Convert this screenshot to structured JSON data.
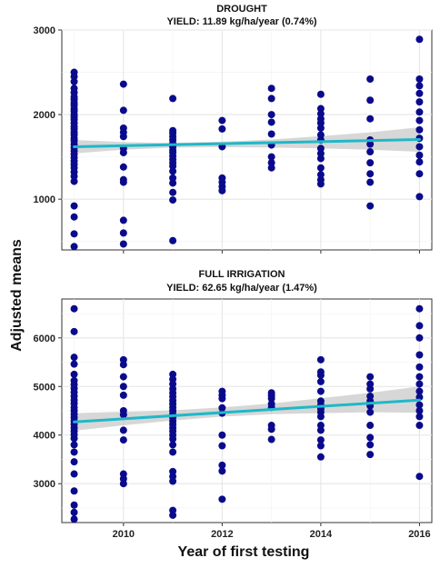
{
  "figure": {
    "ylabel": "Adjusted means",
    "xlabel": "Year of first testing"
  },
  "colors": {
    "point": "#0a0a8c",
    "trend": "#1fb8c8",
    "ribbon": "#bdbdbd"
  },
  "chart_data": [
    {
      "type": "scatter",
      "title": "DROUGHT",
      "subtitle": "YIELD: 11.89 kg/ha/year (0.74%)",
      "xlim": [
        2008.75,
        2016.25
      ],
      "ylim": [
        400,
        3000
      ],
      "x_ticks": [
        2010,
        2012,
        2014,
        2016
      ],
      "y_ticks": [
        1000,
        2000,
        3000
      ],
      "grid": true,
      "trend": {
        "x": [
          2009,
          2016
        ],
        "y": [
          1620,
          1705
        ]
      },
      "ribbon": {
        "x": [
          2009,
          2010,
          2011,
          2012,
          2013,
          2014,
          2015,
          2016
        ],
        "lower": [
          1540,
          1585,
          1610,
          1615,
          1610,
          1600,
          1585,
          1560
        ],
        "upper": [
          1700,
          1675,
          1665,
          1680,
          1705,
          1745,
          1790,
          1850
        ]
      },
      "points": [
        [
          2009,
          2500
        ],
        [
          2009,
          2450
        ],
        [
          2009,
          2390
        ],
        [
          2009,
          2310
        ],
        [
          2009,
          2260
        ],
        [
          2009,
          2210
        ],
        [
          2009,
          2180
        ],
        [
          2009,
          2140
        ],
        [
          2009,
          2110
        ],
        [
          2009,
          2070
        ],
        [
          2009,
          2040
        ],
        [
          2009,
          2000
        ],
        [
          2009,
          1970
        ],
        [
          2009,
          1940
        ],
        [
          2009,
          1900
        ],
        [
          2009,
          1860
        ],
        [
          2009,
          1830
        ],
        [
          2009,
          1790
        ],
        [
          2009,
          1760
        ],
        [
          2009,
          1720
        ],
        [
          2009,
          1690
        ],
        [
          2009,
          1650
        ],
        [
          2009,
          1610
        ],
        [
          2009,
          1570
        ],
        [
          2009,
          1530
        ],
        [
          2009,
          1490
        ],
        [
          2009,
          1450
        ],
        [
          2009,
          1410
        ],
        [
          2009,
          1370
        ],
        [
          2009,
          1320
        ],
        [
          2009,
          1270
        ],
        [
          2009,
          1210
        ],
        [
          2009,
          920
        ],
        [
          2009,
          790
        ],
        [
          2009,
          590
        ],
        [
          2009,
          440
        ],
        [
          2010,
          2360
        ],
        [
          2010,
          2050
        ],
        [
          2010,
          1840
        ],
        [
          2010,
          1790
        ],
        [
          2010,
          1740
        ],
        [
          2010,
          1600
        ],
        [
          2010,
          1550
        ],
        [
          2010,
          1380
        ],
        [
          2010,
          1230
        ],
        [
          2010,
          1200
        ],
        [
          2010,
          750
        ],
        [
          2010,
          600
        ],
        [
          2010,
          470
        ],
        [
          2011,
          2190
        ],
        [
          2011,
          1810
        ],
        [
          2011,
          1780
        ],
        [
          2011,
          1740
        ],
        [
          2011,
          1700
        ],
        [
          2011,
          1660
        ],
        [
          2011,
          1620
        ],
        [
          2011,
          1580
        ],
        [
          2011,
          1550
        ],
        [
          2011,
          1510
        ],
        [
          2011,
          1470
        ],
        [
          2011,
          1430
        ],
        [
          2011,
          1390
        ],
        [
          2011,
          1330
        ],
        [
          2011,
          1250
        ],
        [
          2011,
          1190
        ],
        [
          2011,
          1080
        ],
        [
          2011,
          990
        ],
        [
          2011,
          510
        ],
        [
          2012,
          1930
        ],
        [
          2012,
          1830
        ],
        [
          2012,
          1620
        ],
        [
          2012,
          1250
        ],
        [
          2012,
          1200
        ],
        [
          2012,
          1150
        ],
        [
          2012,
          1100
        ],
        [
          2013,
          2310
        ],
        [
          2013,
          2190
        ],
        [
          2013,
          2000
        ],
        [
          2013,
          1910
        ],
        [
          2013,
          1770
        ],
        [
          2013,
          1640
        ],
        [
          2013,
          1500
        ],
        [
          2013,
          1430
        ],
        [
          2013,
          1370
        ],
        [
          2014,
          2240
        ],
        [
          2014,
          2070
        ],
        [
          2014,
          2010
        ],
        [
          2014,
          1950
        ],
        [
          2014,
          1900
        ],
        [
          2014,
          1840
        ],
        [
          2014,
          1760
        ],
        [
          2014,
          1700
        ],
        [
          2014,
          1600
        ],
        [
          2014,
          1540
        ],
        [
          2014,
          1480
        ],
        [
          2014,
          1370
        ],
        [
          2014,
          1290
        ],
        [
          2014,
          1230
        ],
        [
          2014,
          1180
        ],
        [
          2015,
          2420
        ],
        [
          2015,
          2170
        ],
        [
          2015,
          1950
        ],
        [
          2015,
          1700
        ],
        [
          2015,
          1650
        ],
        [
          2015,
          1560
        ],
        [
          2015,
          1430
        ],
        [
          2015,
          1300
        ],
        [
          2015,
          1200
        ],
        [
          2015,
          920
        ],
        [
          2016,
          2890
        ],
        [
          2016,
          2420
        ],
        [
          2016,
          2340
        ],
        [
          2016,
          2250
        ],
        [
          2016,
          2150
        ],
        [
          2016,
          2030
        ],
        [
          2016,
          1930
        ],
        [
          2016,
          1820
        ],
        [
          2016,
          1720
        ],
        [
          2016,
          1620
        ],
        [
          2016,
          1520
        ],
        [
          2016,
          1440
        ],
        [
          2016,
          1300
        ],
        [
          2016,
          1030
        ]
      ]
    },
    {
      "type": "scatter",
      "title": "FULL IRRIGATION",
      "subtitle": "YIELD: 62.65 kg/ha/year (1.47%)",
      "xlim": [
        2008.75,
        2016.25
      ],
      "ylim": [
        2200,
        6800
      ],
      "x_ticks": [
        2010,
        2012,
        2014,
        2016
      ],
      "y_ticks": [
        3000,
        4000,
        5000,
        6000
      ],
      "grid": true,
      "trend": {
        "x": [
          2009,
          2016
        ],
        "y": [
          4270,
          4720
        ]
      },
      "ribbon": {
        "x": [
          2009,
          2010,
          2011,
          2012,
          2013,
          2014,
          2015,
          2016
        ],
        "lower": [
          4090,
          4200,
          4300,
          4380,
          4430,
          4450,
          4470,
          4460
        ],
        "upper": [
          4450,
          4480,
          4510,
          4570,
          4650,
          4760,
          4870,
          5000
        ]
      },
      "points": [
        [
          2009,
          6600
        ],
        [
          2009,
          6130
        ],
        [
          2009,
          5600
        ],
        [
          2009,
          5460
        ],
        [
          2009,
          5250
        ],
        [
          2009,
          5120
        ],
        [
          2009,
          5040
        ],
        [
          2009,
          4960
        ],
        [
          2009,
          4880
        ],
        [
          2009,
          4800
        ],
        [
          2009,
          4720
        ],
        [
          2009,
          4650
        ],
        [
          2009,
          4570
        ],
        [
          2009,
          4500
        ],
        [
          2009,
          4430
        ],
        [
          2009,
          4360
        ],
        [
          2009,
          4290
        ],
        [
          2009,
          4220
        ],
        [
          2009,
          4150
        ],
        [
          2009,
          4080
        ],
        [
          2009,
          4010
        ],
        [
          2009,
          3930
        ],
        [
          2009,
          3800
        ],
        [
          2009,
          3650
        ],
        [
          2009,
          3450
        ],
        [
          2009,
          3200
        ],
        [
          2009,
          2850
        ],
        [
          2009,
          2560
        ],
        [
          2009,
          2410
        ],
        [
          2009,
          2270
        ],
        [
          2010,
          5550
        ],
        [
          2010,
          5450
        ],
        [
          2010,
          5200
        ],
        [
          2010,
          5000
        ],
        [
          2010,
          4820
        ],
        [
          2010,
          4500
        ],
        [
          2010,
          4420
        ],
        [
          2010,
          4100
        ],
        [
          2010,
          3900
        ],
        [
          2010,
          3200
        ],
        [
          2010,
          3100
        ],
        [
          2010,
          3000
        ],
        [
          2011,
          5250
        ],
        [
          2011,
          5150
        ],
        [
          2011,
          5050
        ],
        [
          2011,
          4950
        ],
        [
          2011,
          4870
        ],
        [
          2011,
          4790
        ],
        [
          2011,
          4710
        ],
        [
          2011,
          4640
        ],
        [
          2011,
          4570
        ],
        [
          2011,
          4500
        ],
        [
          2011,
          4430
        ],
        [
          2011,
          4360
        ],
        [
          2011,
          4290
        ],
        [
          2011,
          4220
        ],
        [
          2011,
          4150
        ],
        [
          2011,
          4080
        ],
        [
          2011,
          4000
        ],
        [
          2011,
          3920
        ],
        [
          2011,
          3800
        ],
        [
          2011,
          3650
        ],
        [
          2011,
          3250
        ],
        [
          2011,
          3150
        ],
        [
          2011,
          3050
        ],
        [
          2011,
          2450
        ],
        [
          2011,
          2350
        ],
        [
          2012,
          4900
        ],
        [
          2012,
          4820
        ],
        [
          2012,
          4750
        ],
        [
          2012,
          4560
        ],
        [
          2012,
          4450
        ],
        [
          2012,
          4000
        ],
        [
          2012,
          3780
        ],
        [
          2012,
          3380
        ],
        [
          2012,
          3260
        ],
        [
          2012,
          2680
        ],
        [
          2013,
          4870
        ],
        [
          2013,
          4810
        ],
        [
          2013,
          4750
        ],
        [
          2013,
          4640
        ],
        [
          2013,
          4570
        ],
        [
          2013,
          4200
        ],
        [
          2013,
          4120
        ],
        [
          2013,
          3910
        ],
        [
          2014,
          5550
        ],
        [
          2014,
          5300
        ],
        [
          2014,
          5230
        ],
        [
          2014,
          5100
        ],
        [
          2014,
          4900
        ],
        [
          2014,
          4700
        ],
        [
          2014,
          4620
        ],
        [
          2014,
          4540
        ],
        [
          2014,
          4470
        ],
        [
          2014,
          4380
        ],
        [
          2014,
          4200
        ],
        [
          2014,
          4100
        ],
        [
          2014,
          3900
        ],
        [
          2014,
          3780
        ],
        [
          2014,
          3550
        ],
        [
          2015,
          5200
        ],
        [
          2015,
          5050
        ],
        [
          2015,
          4950
        ],
        [
          2015,
          4800
        ],
        [
          2015,
          4700
        ],
        [
          2015,
          4600
        ],
        [
          2015,
          4470
        ],
        [
          2015,
          4200
        ],
        [
          2015,
          3950
        ],
        [
          2015,
          3800
        ],
        [
          2015,
          3600
        ],
        [
          2016,
          6600
        ],
        [
          2016,
          6250
        ],
        [
          2016,
          6000
        ],
        [
          2016,
          5650
        ],
        [
          2016,
          5400
        ],
        [
          2016,
          5200
        ],
        [
          2016,
          5050
        ],
        [
          2016,
          4900
        ],
        [
          2016,
          4780
        ],
        [
          2016,
          4620
        ],
        [
          2016,
          4500
        ],
        [
          2016,
          4380
        ],
        [
          2016,
          4200
        ],
        [
          2016,
          3150
        ]
      ]
    }
  ]
}
